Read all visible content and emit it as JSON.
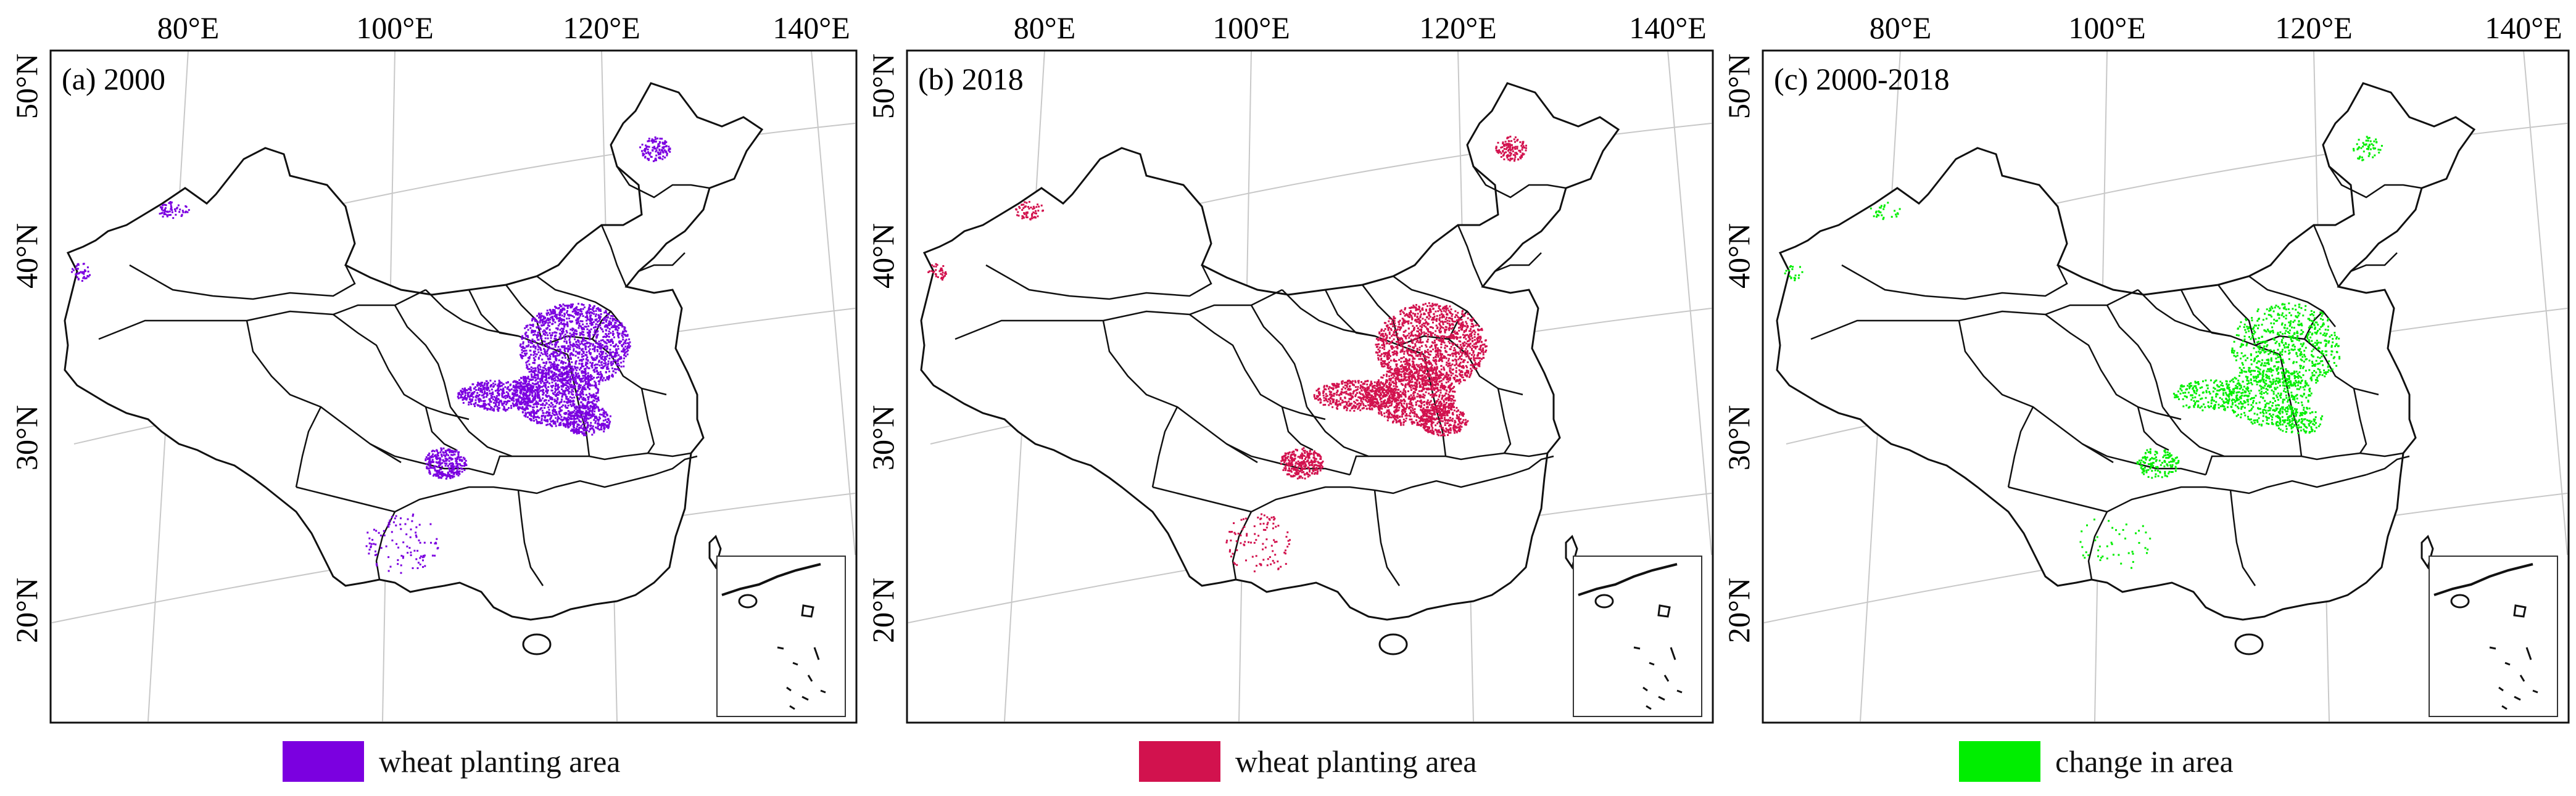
{
  "colors": {
    "wheat_2000": "#7b00e0",
    "wheat_2018": "#d2124e",
    "change": "#00ee00",
    "boundary": "#111111",
    "graticule": "#c8c8c8"
  },
  "longitude_labels": [
    "80°E",
    "100°E",
    "120°E",
    "140°E"
  ],
  "latitude_labels": [
    "50°N",
    "40°N",
    "30°N",
    "20°N"
  ],
  "panels": [
    {
      "id": "a",
      "title": "(a) 2000",
      "legend_label": "wheat planting area",
      "color_key": "wheat_2000",
      "layer": "wheat planting area 2000"
    },
    {
      "id": "b",
      "title": "(b) 2018",
      "legend_label": "wheat planting area",
      "color_key": "wheat_2018",
      "layer": "wheat planting area 2018"
    },
    {
      "id": "c",
      "title": "(c) 2000-2018",
      "legend_label": "change in area",
      "color_key": "change",
      "layer": "change in area"
    }
  ]
}
